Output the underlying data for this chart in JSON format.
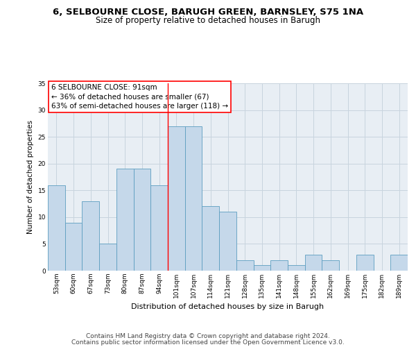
{
  "title": "6, SELBOURNE CLOSE, BARUGH GREEN, BARNSLEY, S75 1NA",
  "subtitle": "Size of property relative to detached houses in Barugh",
  "xlabel": "Distribution of detached houses by size in Barugh",
  "ylabel": "Number of detached properties",
  "categories": [
    "53sqm",
    "60sqm",
    "67sqm",
    "73sqm",
    "80sqm",
    "87sqm",
    "94sqm",
    "101sqm",
    "107sqm",
    "114sqm",
    "121sqm",
    "128sqm",
    "135sqm",
    "141sqm",
    "148sqm",
    "155sqm",
    "162sqm",
    "169sqm",
    "175sqm",
    "182sqm",
    "189sqm"
  ],
  "values": [
    16,
    9,
    13,
    5,
    19,
    19,
    16,
    27,
    27,
    12,
    11,
    2,
    1,
    2,
    1,
    3,
    2,
    0,
    3,
    0,
    3
  ],
  "bar_color": "#c5d8ea",
  "bar_edge_color": "#5b9dc0",
  "grid_color": "#c8d4de",
  "background_color": "#e8eef4",
  "annotation_line1": "6 SELBOURNE CLOSE: 91sqm",
  "annotation_line2": "← 36% of detached houses are smaller (67)",
  "annotation_line3": "63% of semi-detached houses are larger (118) →",
  "annotation_box_color": "white",
  "annotation_box_edge_color": "red",
  "red_line_x": 6.5,
  "ylim": [
    0,
    35
  ],
  "yticks": [
    0,
    5,
    10,
    15,
    20,
    25,
    30,
    35
  ],
  "footer_line1": "Contains HM Land Registry data © Crown copyright and database right 2024.",
  "footer_line2": "Contains public sector information licensed under the Open Government Licence v3.0.",
  "title_fontsize": 9.5,
  "subtitle_fontsize": 8.5,
  "xlabel_fontsize": 8,
  "ylabel_fontsize": 7.5,
  "tick_fontsize": 6.5,
  "annotation_fontsize": 7.5,
  "footer_fontsize": 6.5
}
